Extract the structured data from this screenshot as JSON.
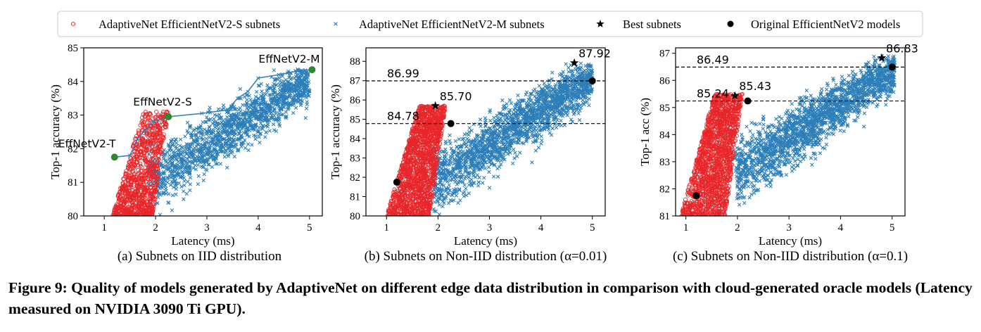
{
  "legend": [
    {
      "label": "AdaptiveNet EfficientNetV2-S subnets",
      "marker": "circle-open",
      "color": "#e8262a"
    },
    {
      "label": "AdaptiveNet EfficientNetV2-M subnets",
      "marker": "x",
      "color": "#2d7fb8"
    },
    {
      "label": "Best subnets",
      "marker": "star",
      "color": "#000000"
    },
    {
      "label": "Original EfficientNetV2 models",
      "marker": "dot",
      "color": "#000000"
    }
  ],
  "colors": {
    "s_subnets": "#e8262a",
    "m_subnets": "#2d7fb8",
    "frontier": "#2d7fb8",
    "iid_models": "#2b8a2b",
    "best": "#000000"
  },
  "caption": "Figure 9: Quality of models generated by AdaptiveNet on different edge data distribution in comparison with cloud-generated oracle models (Latency measured on NVIDIA 3090 Ti GPU).",
  "chart_data": [
    {
      "type": "scatter",
      "subtitle": "(a) Subnets on IID distribution",
      "xlabel": "Latency (ms)",
      "ylabel": "Top-1 accuracy (%)",
      "xlim": [
        0.6,
        5.25
      ],
      "ylim": [
        80,
        85
      ],
      "xticks": [
        1,
        2,
        3,
        4,
        5
      ],
      "yticks": [
        80,
        81,
        82,
        83,
        84,
        85
      ],
      "series": [
        {
          "name": "AdaptiveNet EfficientNetV2-S subnets",
          "cloud": {
            "x_range": [
              1.15,
              2.25
            ],
            "y_range": [
              80.0,
              83.1
            ]
          }
        },
        {
          "name": "AdaptiveNet EfficientNetV2-M subnets",
          "cloud": {
            "x_range": [
              1.85,
              5.0
            ],
            "y_range": [
              80.0,
              84.4
            ]
          }
        },
        {
          "name": "Original EfficientNetV2 models",
          "points": [
            {
              "label": "EffNetV2-T",
              "x": 1.2,
              "y": 81.75
            },
            {
              "label": "EffNetV2-S",
              "x": 2.25,
              "y": 82.95
            },
            {
              "label": "EffNetV2-M",
              "x": 5.05,
              "y": 84.35
            }
          ]
        }
      ],
      "frontier": [
        [
          1.2,
          81.75
        ],
        [
          1.5,
          81.8
        ],
        [
          1.65,
          82.3
        ],
        [
          1.8,
          82.55
        ],
        [
          1.95,
          82.8
        ],
        [
          2.25,
          82.95
        ],
        [
          2.9,
          83.05
        ],
        [
          3.4,
          83.15
        ],
        [
          3.6,
          83.5
        ],
        [
          3.8,
          83.7
        ],
        [
          4.0,
          84.1
        ],
        [
          4.4,
          84.2
        ],
        [
          4.8,
          84.32
        ],
        [
          5.05,
          84.35
        ]
      ]
    },
    {
      "type": "scatter",
      "subtitle": "(b) Subnets on Non-IID distribution (α=0.01)",
      "xlabel": "Latency (ms)",
      "ylabel": "Top-1 accuracy (%)",
      "xlim": [
        0.6,
        5.25
      ],
      "ylim": [
        80,
        88.7
      ],
      "xticks": [
        1,
        2,
        3,
        4,
        5
      ],
      "yticks": [
        80,
        81,
        82,
        83,
        84,
        85,
        86,
        87,
        88
      ],
      "hlines": [
        {
          "y": 86.99,
          "label": "86.99"
        },
        {
          "y": 84.78,
          "label": "84.78"
        }
      ],
      "series": [
        {
          "name": "AdaptiveNet EfficientNetV2-S subnets",
          "cloud": {
            "x_range": [
              1.0,
              2.15
            ],
            "y_range": [
              80.0,
              85.7
            ]
          }
        },
        {
          "name": "AdaptiveNet EfficientNetV2-M subnets",
          "cloud": {
            "x_range": [
              1.9,
              5.0
            ],
            "y_range": [
              80.0,
              87.9
            ]
          }
        },
        {
          "name": "Best subnets",
          "points": [
            {
              "x": 1.95,
              "y": 85.7,
              "label": "85.70"
            },
            {
              "x": 4.65,
              "y": 87.92,
              "label": "87.92"
            }
          ]
        },
        {
          "name": "Original EfficientNetV2 models",
          "points": [
            {
              "x": 1.2,
              "y": 81.75
            },
            {
              "x": 2.25,
              "y": 84.78
            },
            {
              "x": 5.0,
              "y": 86.99
            }
          ]
        }
      ]
    },
    {
      "type": "scatter",
      "subtitle": "(c) Subnets on Non-IID distribution (α=0.1)",
      "xlabel": "Latency (ms)",
      "ylabel": "Top-1 acc (%)",
      "xlim": [
        0.8,
        5.25
      ],
      "ylim": [
        81,
        87.2
      ],
      "xticks": [
        1,
        2,
        3,
        4,
        5
      ],
      "yticks": [
        81,
        82,
        83,
        84,
        85,
        86,
        87
      ],
      "hlines": [
        {
          "y": 86.49,
          "label": "86.49"
        },
        {
          "y": 85.24,
          "label": "85.24"
        }
      ],
      "series": [
        {
          "name": "AdaptiveNet EfficientNetV2-S subnets",
          "cloud": {
            "x_range": [
              0.9,
              2.1
            ],
            "y_range": [
              81.0,
              85.5
            ]
          }
        },
        {
          "name": "AdaptiveNet EfficientNetV2-M subnets",
          "cloud": {
            "x_range": [
              1.95,
              5.05
            ],
            "y_range": [
              81.3,
              86.9
            ]
          }
        },
        {
          "name": "Best subnets",
          "points": [
            {
              "x": 1.95,
              "y": 85.43,
              "label": "85.43"
            },
            {
              "x": 4.8,
              "y": 86.83,
              "label": "86.83"
            }
          ]
        },
        {
          "name": "Original EfficientNetV2 models",
          "points": [
            {
              "x": 1.2,
              "y": 81.75
            },
            {
              "x": 2.2,
              "y": 85.24
            },
            {
              "x": 5.0,
              "y": 86.49
            }
          ]
        }
      ]
    }
  ]
}
